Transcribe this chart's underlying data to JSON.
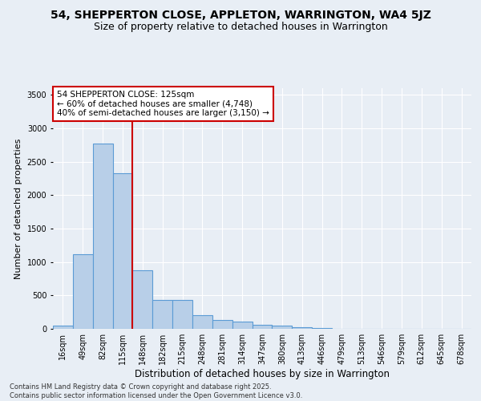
{
  "title": "54, SHEPPERTON CLOSE, APPLETON, WARRINGTON, WA4 5JZ",
  "subtitle": "Size of property relative to detached houses in Warrington",
  "xlabel": "Distribution of detached houses by size in Warrington",
  "ylabel": "Number of detached properties",
  "categories": [
    "16sqm",
    "49sqm",
    "82sqm",
    "115sqm",
    "148sqm",
    "182sqm",
    "215sqm",
    "248sqm",
    "281sqm",
    "314sqm",
    "347sqm",
    "380sqm",
    "413sqm",
    "446sqm",
    "479sqm",
    "513sqm",
    "546sqm",
    "579sqm",
    "612sqm",
    "645sqm",
    "678sqm"
  ],
  "values": [
    50,
    1120,
    2770,
    2330,
    880,
    430,
    430,
    210,
    130,
    110,
    60,
    50,
    30,
    8,
    0,
    0,
    0,
    0,
    0,
    0,
    0
  ],
  "bar_color": "#b8cfe8",
  "bar_edge_color": "#5b9bd5",
  "vline_color": "#cc0000",
  "vline_pos": 3.5,
  "annotation_text": "54 SHEPPERTON CLOSE: 125sqm\n← 60% of detached houses are smaller (4,748)\n40% of semi-detached houses are larger (3,150) →",
  "annotation_box_color": "#ffffff",
  "annotation_box_edge": "#cc0000",
  "ylim": [
    0,
    3600
  ],
  "yticks": [
    0,
    500,
    1000,
    1500,
    2000,
    2500,
    3000,
    3500
  ],
  "background_color": "#e8eef5",
  "grid_color": "#ffffff",
  "footer": "Contains HM Land Registry data © Crown copyright and database right 2025.\nContains public sector information licensed under the Open Government Licence v3.0.",
  "title_fontsize": 10,
  "subtitle_fontsize": 9,
  "xlabel_fontsize": 8.5,
  "ylabel_fontsize": 8,
  "tick_fontsize": 7,
  "annotation_fontsize": 7.5,
  "footer_fontsize": 6
}
